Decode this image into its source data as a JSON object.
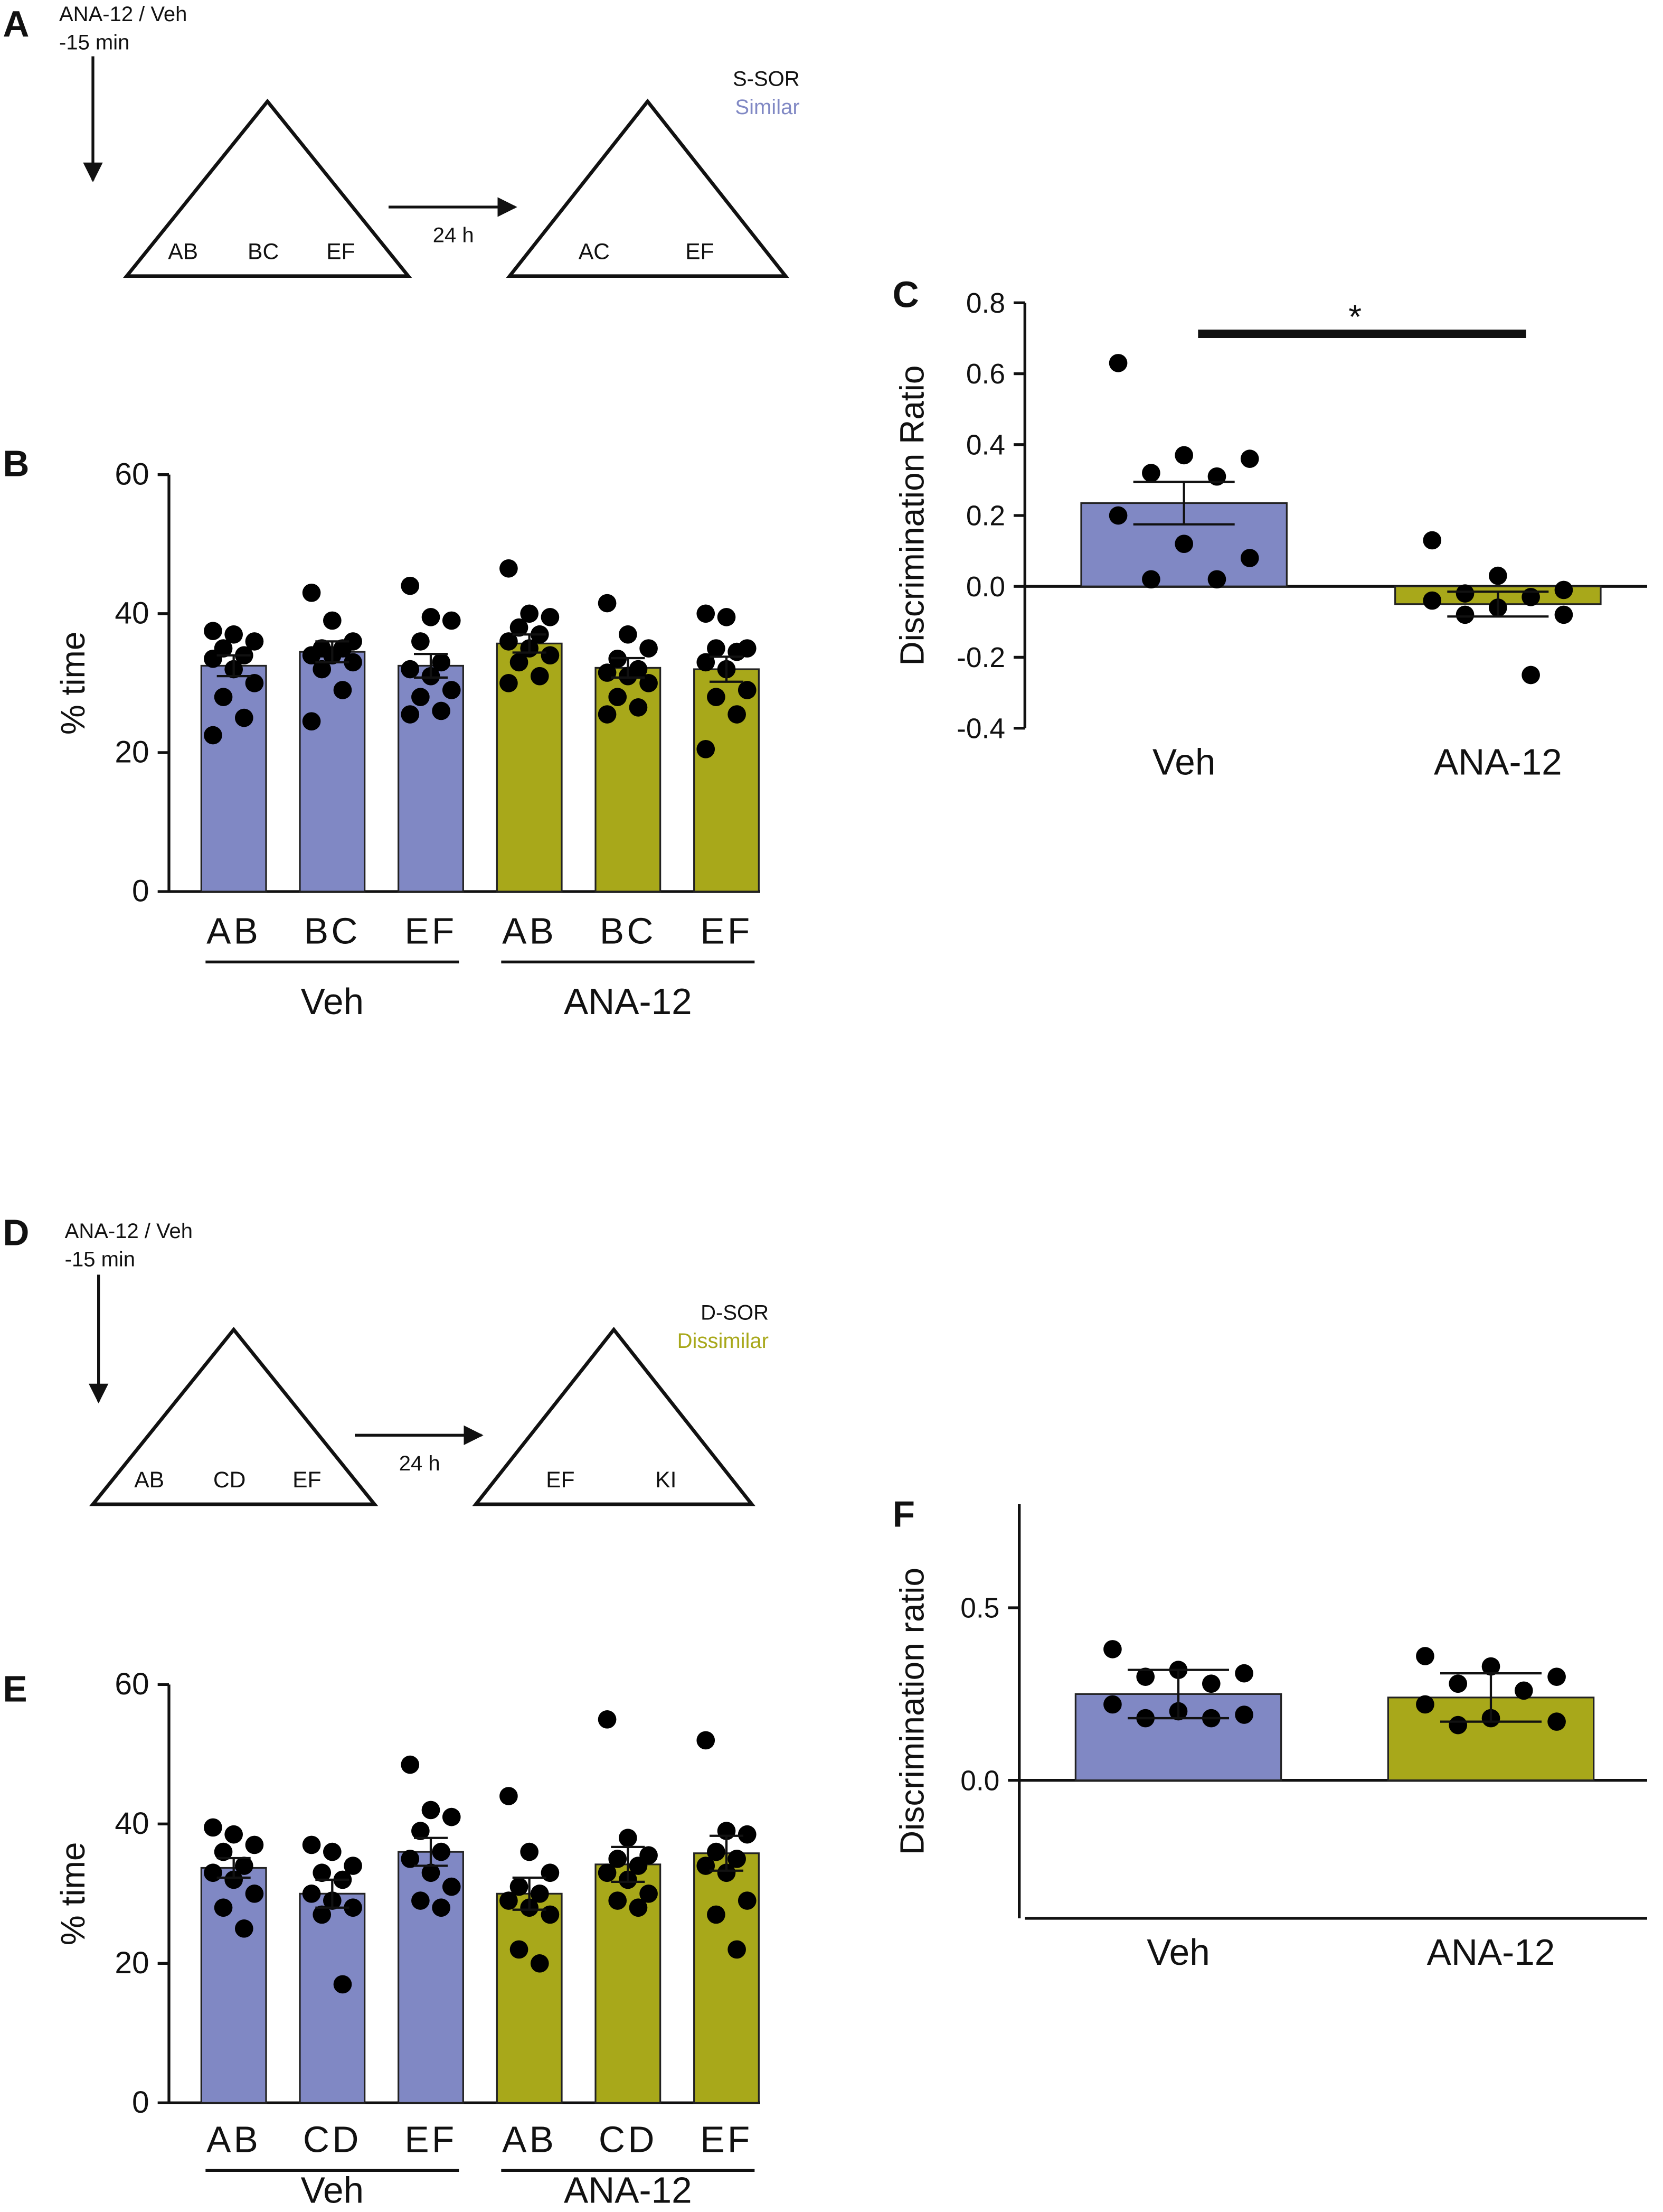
{
  "chart_data": [
    {
      "type": "bar",
      "panel_label": "B",
      "ylabel": "% time",
      "ylim": [
        0,
        60
      ],
      "yticks": [
        0,
        20,
        40,
        60
      ],
      "series": [
        {
          "name": "Veh",
          "color": "#8088c4",
          "categories": [
            "AB",
            "BC",
            "EF"
          ],
          "values": [
            32.5,
            34.5,
            32.5
          ],
          "errors": [
            1.5,
            1.5,
            1.7
          ],
          "points": [
            [
              37.5,
              37,
              36,
              35,
              34,
              33.5,
              32,
              30,
              28,
              25,
              22.5
            ],
            [
              43,
              39,
              36,
              35,
              35,
              34,
              34,
              33,
              32,
              29,
              24.5
            ],
            [
              44,
              39.5,
              39,
              36,
              33,
              32,
              31,
              29,
              28,
              26,
              25.5
            ]
          ]
        },
        {
          "name": "ANA-12",
          "color": "#a8a81a",
          "categories": [
            "AB",
            "BC",
            "EF"
          ],
          "values": [
            35.7,
            32.2,
            32.0
          ],
          "errors": [
            1.3,
            1.4,
            1.8
          ],
          "points": [
            [
              46.5,
              40,
              39.5,
              38,
              37,
              36,
              35,
              34,
              33,
              31,
              30
            ],
            [
              41.5,
              37,
              35,
              33.5,
              32,
              31.5,
              31,
              30,
              28,
              26.5,
              25.5
            ],
            [
              40,
              39.5,
              35,
              35,
              34.5,
              33,
              32,
              29,
              28,
              25.5,
              20.5
            ]
          ]
        }
      ]
    },
    {
      "type": "bar",
      "panel_label": "C",
      "ylabel": "Discrimination Ratio",
      "ylim": [
        -0.4,
        0.8
      ],
      "yticks": [
        -0.4,
        -0.2,
        {
          "value": 0,
          "label": "0.0"
        },
        0.2,
        0.4,
        0.6,
        0.8
      ],
      "categories": [
        "Veh",
        "ANA-12"
      ],
      "colors": [
        "#8088c4",
        "#a8a81a"
      ],
      "values": [
        0.235,
        -0.05
      ],
      "errors": [
        0.06,
        0.035
      ],
      "points": [
        [
          0.63,
          0.37,
          0.36,
          0.32,
          0.31,
          0.2,
          0.12,
          0.08,
          0.02,
          0.02
        ],
        [
          0.13,
          0.03,
          -0.01,
          -0.02,
          -0.03,
          -0.04,
          -0.06,
          -0.08,
          -0.08,
          -0.25
        ]
      ],
      "annotation": "*"
    },
    {
      "type": "bar",
      "panel_label": "E",
      "ylabel": "% time",
      "ylim": [
        0,
        60
      ],
      "yticks": [
        0,
        20,
        40,
        60
      ],
      "series": [
        {
          "name": "Veh",
          "color": "#8088c4",
          "categories": [
            "AB",
            "CD",
            "EF"
          ],
          "values": [
            33.7,
            30.0,
            36.0
          ],
          "errors": [
            1.4,
            2.0,
            2.0
          ],
          "points": [
            [
              39.5,
              38.5,
              37,
              36,
              34,
              33,
              32,
              30,
              28,
              25
            ],
            [
              37,
              36,
              34,
              33,
              32,
              30,
              29,
              28,
              27,
              17
            ],
            [
              48.5,
              42,
              41,
              39,
              36,
              35,
              33,
              31,
              29,
              28
            ]
          ]
        },
        {
          "name": "ANA-12",
          "color": "#a8a81a",
          "categories": [
            "AB",
            "CD",
            "EF"
          ],
          "values": [
            30.0,
            34.2,
            35.8
          ],
          "errors": [
            2.3,
            2.5,
            2.5
          ],
          "points": [
            [
              44,
              36,
              33,
              31,
              30,
              29,
              28,
              27,
              22,
              20
            ],
            [
              55,
              38,
              35.5,
              35,
              34,
              33,
              32,
              30,
              29,
              28
            ],
            [
              52,
              39,
              38.5,
              36,
              35,
              34,
              33,
              29,
              27,
              22
            ]
          ]
        }
      ]
    },
    {
      "type": "bar",
      "panel_label": "F",
      "ylabel": "Discrimination ratio",
      "ylim": [
        -0.4,
        0.8
      ],
      "yticks": [
        {
          "value": 0,
          "label": "0.0"
        },
        0.5
      ],
      "categories": [
        "Veh",
        "ANA-12"
      ],
      "colors": [
        "#8088c4",
        "#a8a81a"
      ],
      "values": [
        0.25,
        0.24
      ],
      "errors": [
        0.07,
        0.07
      ],
      "points": [
        [
          0.38,
          0.32,
          0.31,
          0.3,
          0.28,
          0.22,
          0.2,
          0.19,
          0.18,
          0.18
        ],
        [
          0.36,
          0.33,
          0.3,
          0.28,
          0.26,
          0.22,
          0.18,
          0.17,
          0.16
        ]
      ]
    }
  ],
  "schematics": [
    {
      "panel_label": "A",
      "treatment": "ANA-12 / Veh",
      "time": "-15 min",
      "delay": "24 h",
      "training_objects": [
        "AB",
        "BC",
        "EF"
      ],
      "test_objects": [
        "AC",
        "EF"
      ],
      "protocol": "S-SOR",
      "condition": "Similar",
      "condition_color": "#8088c4"
    },
    {
      "panel_label": "D",
      "treatment": "ANA-12 / Veh",
      "time": "-15 min",
      "delay": "24 h",
      "training_objects": [
        "AB",
        "CD",
        "EF"
      ],
      "test_objects": [
        "EF",
        "KI"
      ],
      "protocol": "D-SOR",
      "condition": "Dissimilar",
      "condition_color": "#a8a81a"
    }
  ]
}
